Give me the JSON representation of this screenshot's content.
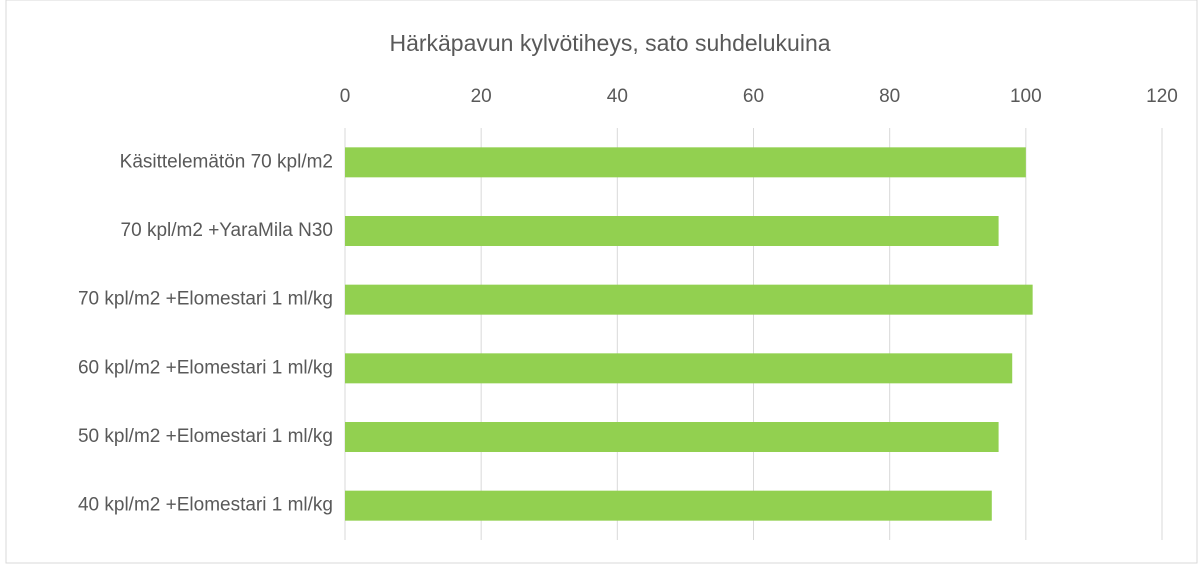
{
  "chart_data": {
    "type": "bar",
    "orientation": "horizontal",
    "title": "Härkäpavun kylvötiheys, sato suhdelukuina",
    "categories": [
      "Käsittelemätön 70 kpl/m2",
      "70 kpl/m2 +YaraMila N30",
      "70 kpl/m2 +Elomestari 1 ml/kg",
      "60 kpl/m2 +Elomestari 1 ml/kg",
      "50 kpl/m2 +Elomestari 1 ml/kg",
      "40 kpl/m2 +Elomestari 1 ml/kg"
    ],
    "values": [
      100,
      96,
      101,
      98,
      96,
      95
    ],
    "color": "#92d050",
    "xlim": [
      0,
      120
    ],
    "xticks": [
      0,
      20,
      40,
      60,
      80,
      100,
      120
    ],
    "grid": true
  }
}
